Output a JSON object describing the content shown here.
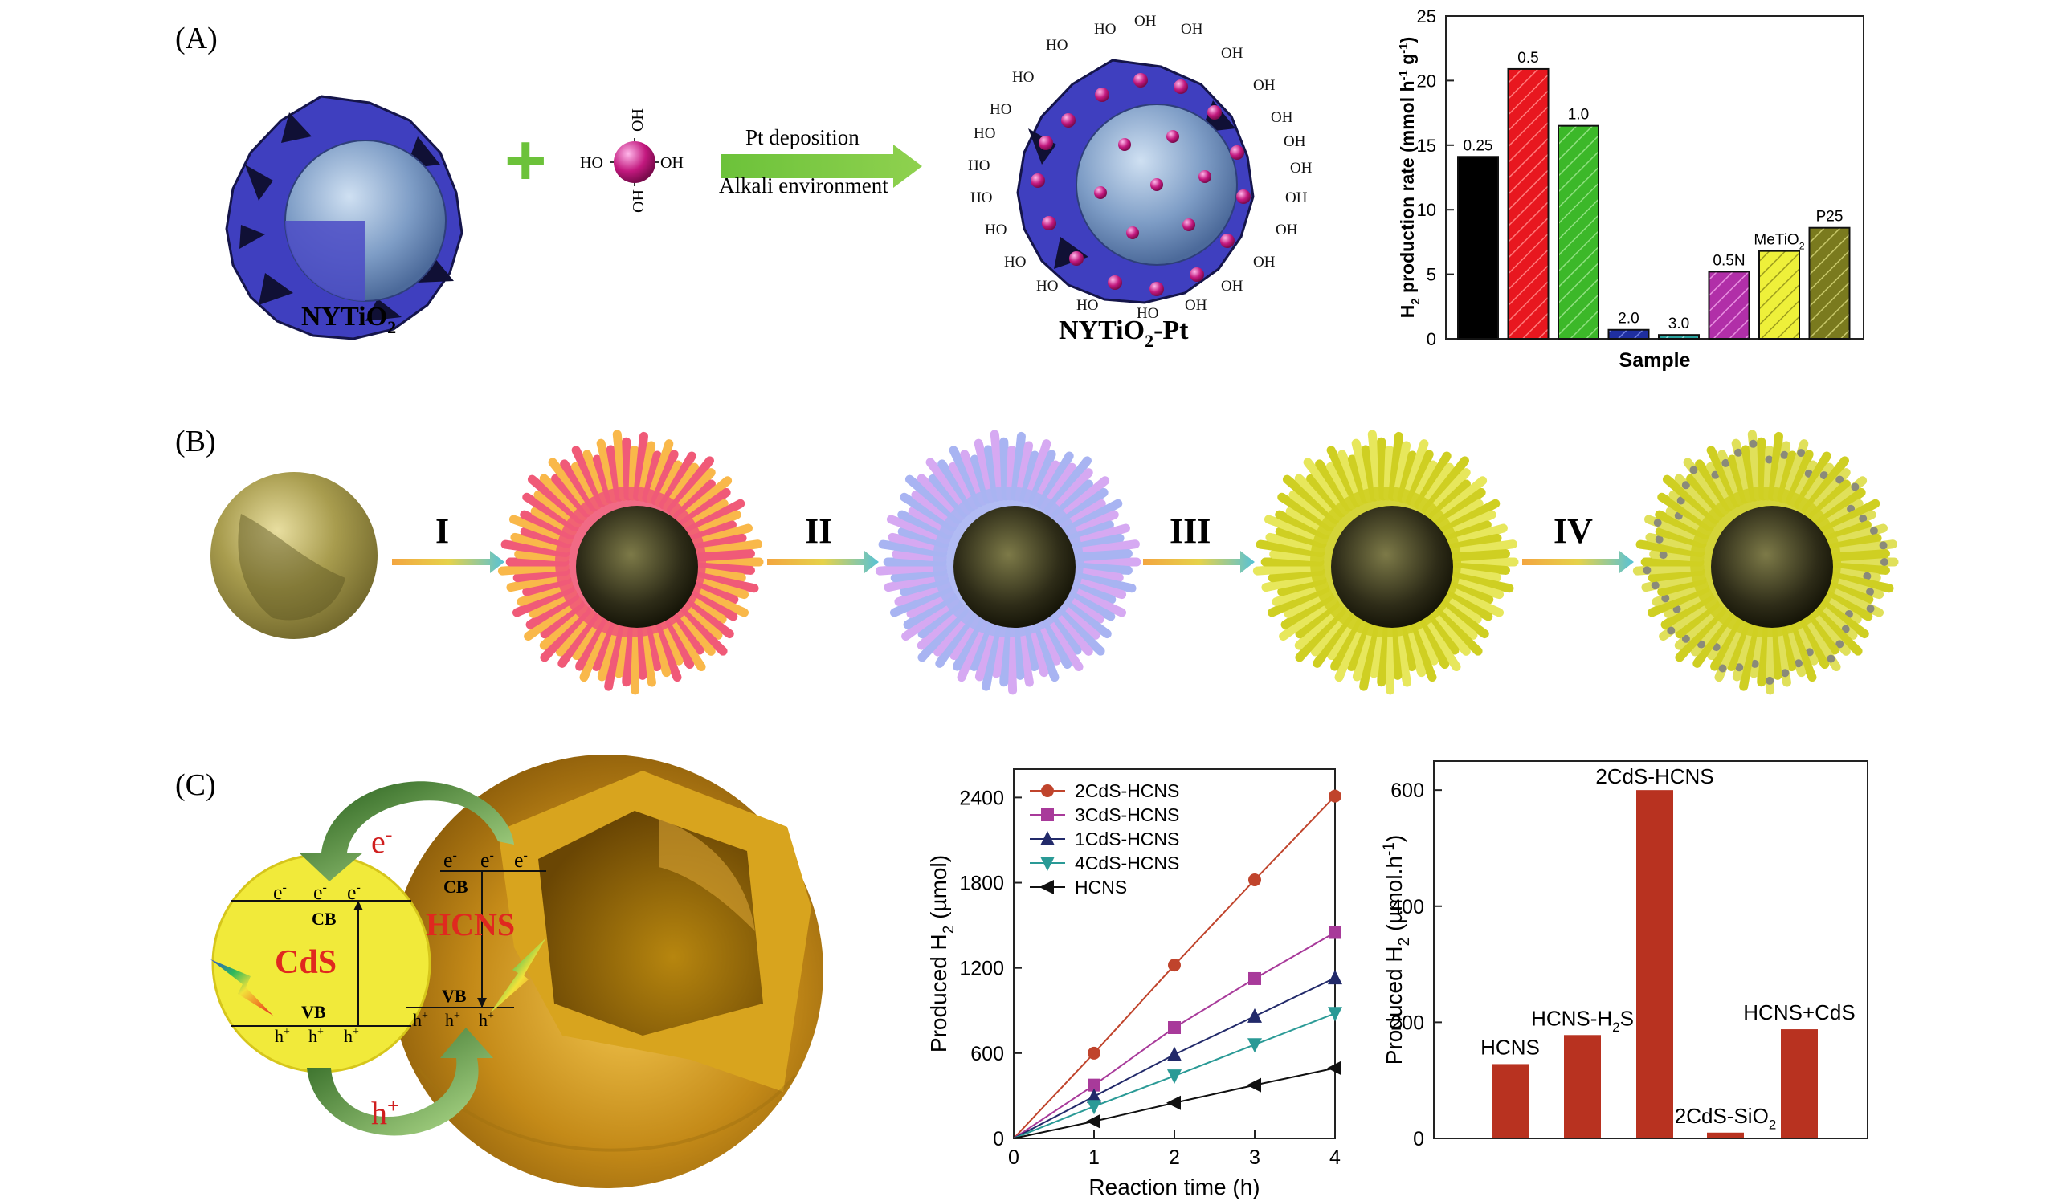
{
  "panels": {
    "a": {
      "tag": "(A)",
      "left_label_main": "NYTiO",
      "left_label_sub": "2",
      "right_label_main": "NYTiO",
      "right_label_sub": "2",
      "right_label_tail": "-Pt",
      "arrow_top": "Pt deposition",
      "arrow_bottom": "Alkali environment",
      "plus": "+",
      "oh": "OH",
      "ho": "HO"
    },
    "b": {
      "tag": "(B)",
      "steps": [
        "I",
        "II",
        "III",
        "IV"
      ]
    },
    "c": {
      "tag": "(C)",
      "cds": "CdS",
      "hcns": "HCNS",
      "cb": "CB",
      "vb": "VB",
      "electron": "e",
      "hole": "h",
      "minus": "-",
      "plus": "+"
    }
  },
  "chart_data": [
    {
      "id": "a_bar",
      "type": "bar",
      "title": "",
      "xlabel": "Sample",
      "ylabel_parts": [
        "H",
        "2",
        " production rate (mmol h",
        "-1",
        " g",
        "-1",
        ")"
      ],
      "ylim": [
        0,
        25
      ],
      "yticks": [
        0,
        5,
        10,
        15,
        20,
        25
      ],
      "categories": [
        "0.25",
        "0.5",
        "1.0",
        "2.0",
        "3.0",
        "0.5N",
        "MeTiO2",
        "P25"
      ],
      "category_labels": [
        {
          "main": "0.25"
        },
        {
          "main": "0.5"
        },
        {
          "main": "1.0"
        },
        {
          "main": "2.0"
        },
        {
          "main": "3.0"
        },
        {
          "main": "0.5N"
        },
        {
          "main": "MeTiO",
          "sub": "2"
        },
        {
          "main": "P25"
        }
      ],
      "values": [
        14.1,
        20.9,
        16.5,
        0.7,
        0.3,
        5.2,
        6.8,
        8.6
      ],
      "colors": [
        "#000000",
        "#e8171f",
        "#3cb829",
        "#1f2fa0",
        "#2aa5a0",
        "#b12fa8",
        "#eef03a",
        "#7a7a1e"
      ]
    },
    {
      "id": "c_line",
      "type": "line",
      "title": "",
      "xlabel": "Reaction time (h)",
      "ylabel_parts": [
        "Produced H",
        "2",
        "  (µmol)"
      ],
      "xlim": [
        0,
        4
      ],
      "ylim": [
        0,
        2600
      ],
      "xticks": [
        0,
        1,
        2,
        3,
        4
      ],
      "yticks": [
        0,
        600,
        1200,
        1800,
        2400
      ],
      "x": [
        0,
        1,
        2,
        3,
        4
      ],
      "series": [
        {
          "name": "2CdS-HCNS",
          "values": [
            0,
            600,
            1220,
            1820,
            2410
          ],
          "color": "#c0442c",
          "marker": "circle"
        },
        {
          "name": "3CdS-HCNS",
          "values": [
            0,
            375,
            780,
            1125,
            1450
          ],
          "color": "#a83a9a",
          "marker": "square"
        },
        {
          "name": "1CdS-HCNS",
          "values": [
            0,
            295,
            590,
            860,
            1130
          ],
          "color": "#222a6a",
          "marker": "triangle-up"
        },
        {
          "name": "4CdS-HCNS",
          "values": [
            0,
            225,
            440,
            660,
            880
          ],
          "color": "#2a9a96",
          "marker": "triangle-down"
        },
        {
          "name": "HCNS",
          "values": [
            0,
            120,
            250,
            375,
            495
          ],
          "color": "#111111",
          "marker": "triangle-left"
        }
      ]
    },
    {
      "id": "c_bar",
      "type": "bar",
      "title": "",
      "xlabel": "",
      "ylabel_parts": [
        "Produced H",
        "2",
        "  (µmol.h",
        "-1",
        ")"
      ],
      "ylim": [
        0,
        650
      ],
      "yticks": [
        0,
        200,
        400,
        600
      ],
      "categories": [
        "HCNS",
        "HCNS-H2S",
        "2CdS-HCNS",
        "2CdS-SiO2",
        "HCNS+CdS"
      ],
      "category_labels": [
        {
          "main": "HCNS"
        },
        {
          "main": "HCNS-H",
          "sub": "2",
          "tail": "S"
        },
        {
          "main": "2CdS-HCNS"
        },
        {
          "main": "2CdS-SiO",
          "sub": "2"
        },
        {
          "main": "HCNS+CdS"
        }
      ],
      "values": [
        128,
        178,
        600,
        10,
        188
      ],
      "color": "#b83220"
    }
  ]
}
